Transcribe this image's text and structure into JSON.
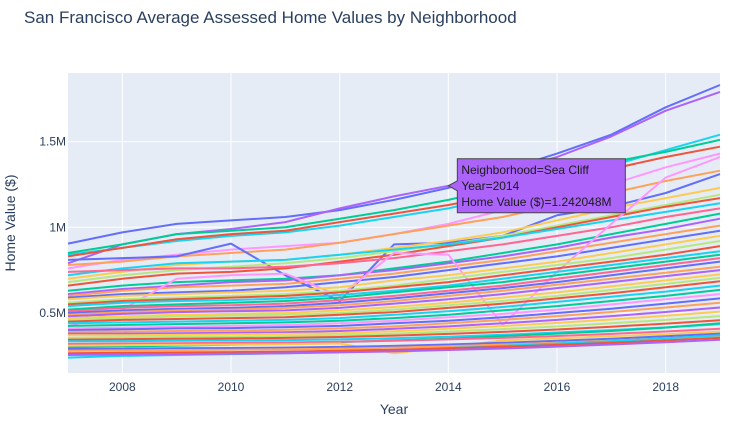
{
  "chart_data": {
    "type": "line",
    "title": "San Francisco Average Assessed Home Values by Neighborhood",
    "xlabel": "Year",
    "ylabel": "Home Value ($)",
    "xlim": [
      2007,
      2019
    ],
    "ylim": [
      150000,
      1900000
    ],
    "x_ticks": [
      2008,
      2010,
      2012,
      2014,
      2016,
      2018
    ],
    "y_ticks": [
      500000,
      1000000,
      1500000
    ],
    "y_tick_labels": [
      "0.5M",
      "1M",
      "1.5M"
    ],
    "grid": true,
    "background": "#e5ecf6",
    "x": [
      2007,
      2008,
      2009,
      2010,
      2011,
      2012,
      2013,
      2014,
      2015,
      2016,
      2017,
      2018,
      2019
    ],
    "series": [
      {
        "color": "#636efa",
        "values": [
          905000,
          970000,
          1020000,
          1040000,
          1060000,
          1100000,
          1160000,
          1230000,
          1330000,
          1430000,
          1540000,
          1700000,
          1830000
        ]
      },
      {
        "color": "#ab63fa",
        "values": [
          790000,
          900000,
          960000,
          990000,
          1030000,
          1110000,
          1180000,
          1242048,
          1320000,
          1410000,
          1530000,
          1680000,
          1790000
        ]
      },
      {
        "color": "#19d3f3",
        "values": [
          840000,
          880000,
          920000,
          950000,
          970000,
          1010000,
          1060000,
          1110000,
          1180000,
          1270000,
          1360000,
          1450000,
          1540000
        ]
      },
      {
        "color": "#00cc96",
        "values": [
          850000,
          900000,
          960000,
          980000,
          1000000,
          1050000,
          1100000,
          1160000,
          1230000,
          1300000,
          1380000,
          1440000,
          1510000
        ]
      },
      {
        "color": "#ef553b",
        "values": [
          830000,
          880000,
          930000,
          960000,
          980000,
          1030000,
          1080000,
          1130000,
          1190000,
          1260000,
          1340000,
          1410000,
          1470000
        ]
      },
      {
        "color": "#ff97ff",
        "values": [
          760000,
          810000,
          840000,
          870000,
          890000,
          910000,
          960000,
          1020000,
          1100000,
          1180000,
          1250000,
          1350000,
          1430000
        ]
      },
      {
        "color": "#ffa15a",
        "values": [
          780000,
          800000,
          830000,
          850000,
          870000,
          910000,
          960000,
          1010000,
          1060000,
          1130000,
          1200000,
          1270000,
          1330000
        ]
      },
      {
        "color": "#636efa",
        "values": [
          810000,
          820000,
          830000,
          905000,
          720000,
          570000,
          900000,
          910000,
          950000,
          1070000,
          1120000,
          1200000,
          1310000
        ]
      },
      {
        "color": "#fecb52",
        "values": [
          700000,
          740000,
          780000,
          800000,
          810000,
          840000,
          880000,
          920000,
          970000,
          1040000,
          1110000,
          1170000,
          1230000
        ]
      },
      {
        "color": "#b6e880",
        "values": [
          680000,
          720000,
          750000,
          770000,
          790000,
          820000,
          860000,
          900000,
          950000,
          1010000,
          1070000,
          1130000,
          1190000
        ]
      },
      {
        "color": "#ef553b",
        "values": [
          660000,
          700000,
          730000,
          740000,
          760000,
          800000,
          840000,
          890000,
          940000,
          1000000,
          1060000,
          1120000,
          1170000
        ]
      },
      {
        "color": "#19d3f3",
        "values": [
          720000,
          760000,
          790000,
          800000,
          810000,
          840000,
          870000,
          900000,
          940000,
          990000,
          1040000,
          1090000,
          1140000
        ]
      },
      {
        "color": "#ff6692",
        "values": [
          740000,
          750000,
          760000,
          760000,
          770000,
          790000,
          820000,
          860000,
          900000,
          950000,
          1000000,
          1060000,
          1110000
        ]
      },
      {
        "color": "#00cc96",
        "values": [
          630000,
          660000,
          680000,
          690000,
          700000,
          720000,
          760000,
          800000,
          850000,
          900000,
          960000,
          1020000,
          1080000
        ]
      },
      {
        "color": "#ab63fa",
        "values": [
          610000,
          640000,
          660000,
          680000,
          690000,
          720000,
          750000,
          790000,
          830000,
          880000,
          940000,
          990000,
          1050000
        ]
      },
      {
        "color": "#ffa15a",
        "values": [
          600000,
          630000,
          650000,
          660000,
          670000,
          700000,
          730000,
          770000,
          810000,
          860000,
          910000,
          960000,
          1010000
        ]
      },
      {
        "color": "#636efa",
        "values": [
          590000,
          610000,
          620000,
          630000,
          650000,
          680000,
          710000,
          750000,
          790000,
          830000,
          880000,
          930000,
          980000
        ]
      },
      {
        "color": "#ff97ff",
        "values": [
          420000,
          520000,
          700000,
          720000,
          730000,
          600000,
          850000,
          840000,
          430000,
          740000,
          1020000,
          1290000,
          1410000
        ]
      },
      {
        "color": "#fecb52",
        "values": [
          580000,
          600000,
          610000,
          620000,
          630000,
          650000,
          690000,
          720000,
          760000,
          800000,
          850000,
          900000,
          950000
        ]
      },
      {
        "color": "#b6e880",
        "values": [
          560000,
          580000,
          590000,
          600000,
          610000,
          630000,
          660000,
          700000,
          740000,
          780000,
          820000,
          870000,
          920000
        ]
      },
      {
        "color": "#ef553b",
        "values": [
          550000,
          570000,
          580000,
          590000,
          600000,
          620000,
          650000,
          680000,
          720000,
          760000,
          800000,
          840000,
          890000
        ]
      },
      {
        "color": "#19d3f3",
        "values": [
          540000,
          560000,
          570000,
          575000,
          585000,
          605000,
          630000,
          660000,
          700000,
          740000,
          780000,
          820000,
          860000
        ]
      },
      {
        "color": "#00cc96",
        "values": [
          520000,
          540000,
          550000,
          560000,
          570000,
          590000,
          620000,
          650000,
          680000,
          720000,
          760000,
          800000,
          840000
        ]
      },
      {
        "color": "#ff6692",
        "values": [
          510000,
          530000,
          540000,
          545000,
          555000,
          575000,
          600000,
          630000,
          660000,
          700000,
          740000,
          780000,
          820000
        ]
      },
      {
        "color": "#636efa",
        "values": [
          500000,
          515000,
          525000,
          530000,
          540000,
          560000,
          585000,
          615000,
          645000,
          680000,
          720000,
          760000,
          800000
        ]
      },
      {
        "color": "#ffa15a",
        "values": [
          490000,
          505000,
          515000,
          520000,
          530000,
          545000,
          570000,
          600000,
          630000,
          665000,
          700000,
          735000,
          770000
        ]
      },
      {
        "color": "#ab63fa",
        "values": [
          480000,
          495000,
          505000,
          510000,
          515000,
          530000,
          555000,
          580000,
          610000,
          645000,
          680000,
          715000,
          750000
        ]
      },
      {
        "color": "#fecb52",
        "values": [
          470000,
          480000,
          490000,
          495000,
          500000,
          515000,
          535000,
          560000,
          590000,
          620000,
          655000,
          690000,
          725000
        ]
      },
      {
        "color": "#b6e880",
        "values": [
          460000,
          470000,
          480000,
          485000,
          490000,
          500000,
          520000,
          545000,
          570000,
          600000,
          635000,
          670000,
          705000
        ]
      },
      {
        "color": "#ef553b",
        "values": [
          450000,
          460000,
          465000,
          470000,
          475000,
          490000,
          505000,
          530000,
          555000,
          585000,
          615000,
          650000,
          685000
        ]
      },
      {
        "color": "#19d3f3",
        "values": [
          440000,
          445000,
          450000,
          455000,
          460000,
          470000,
          490000,
          510000,
          535000,
          565000,
          595000,
          625000,
          660000
        ]
      },
      {
        "color": "#00cc96",
        "values": [
          425000,
          430000,
          435000,
          440000,
          445000,
          455000,
          470000,
          490000,
          515000,
          540000,
          570000,
          600000,
          635000
        ]
      },
      {
        "color": "#ff97ff",
        "values": [
          410000,
          415000,
          420000,
          425000,
          430000,
          440000,
          455000,
          475000,
          495000,
          520000,
          550000,
          580000,
          610000
        ]
      },
      {
        "color": "#636efa",
        "values": [
          400000,
          405000,
          410000,
          412000,
          418000,
          425000,
          440000,
          455000,
          475000,
          500000,
          525000,
          555000,
          585000
        ]
      },
      {
        "color": "#ffa15a",
        "values": [
          390000,
          392000,
          395000,
          398000,
          402000,
          410000,
          422000,
          440000,
          460000,
          482000,
          506000,
          532000,
          560000
        ]
      },
      {
        "color": "#ab63fa",
        "values": [
          380000,
          380000,
          382000,
          385000,
          388000,
          395000,
          408000,
          422000,
          440000,
          460000,
          482000,
          506000,
          532000
        ]
      },
      {
        "color": "#fecb52",
        "values": [
          370000,
          370000,
          372000,
          375000,
          378000,
          382000,
          394000,
          408000,
          424000,
          442000,
          462000,
          484000,
          508000
        ]
      },
      {
        "color": "#b6e880",
        "values": [
          355000,
          358000,
          360000,
          362000,
          365000,
          370000,
          380000,
          392000,
          406000,
          422000,
          440000,
          460000,
          482000
        ]
      },
      {
        "color": "#ef553b",
        "values": [
          345000,
          347000,
          350000,
          352000,
          355000,
          360000,
          368000,
          378000,
          390000,
          404000,
          420000,
          438000,
          458000
        ]
      },
      {
        "color": "#19d3f3",
        "values": [
          335000,
          336000,
          338000,
          340000,
          342000,
          346000,
          353000,
          362000,
          373000,
          386000,
          400000,
          416000,
          434000
        ]
      },
      {
        "color": "#00cc96",
        "values": [
          300000,
          305000,
          310000,
          315000,
          320000,
          330000,
          340000,
          350000,
          365000,
          380000,
          395000,
          415000,
          440000
        ]
      },
      {
        "color": "#ff6692",
        "values": [
          320000,
          322000,
          324000,
          326000,
          328000,
          332000,
          338000,
          346000,
          355000,
          366000,
          378000,
          392000,
          408000
        ]
      },
      {
        "color": "#fecb52",
        "values": [
          310000,
          312000,
          314000,
          316000,
          318000,
          322000,
          265000,
          300000,
          340000,
          352000,
          364000,
          376000,
          392000
        ]
      },
      {
        "color": "#636efa",
        "values": [
          290000,
          292000,
          294000,
          296000,
          298000,
          302000,
          308000,
          316000,
          326000,
          338000,
          350000,
          364000,
          380000
        ]
      },
      {
        "color": "#ffa15a",
        "values": [
          280000,
          282000,
          284000,
          286000,
          288000,
          292000,
          298000,
          306000,
          316000,
          327000,
          339000,
          352000,
          366000
        ]
      },
      {
        "color": "#19d3f3",
        "values": [
          240000,
          250000,
          255000,
          260000,
          265000,
          272000,
          282000,
          295000,
          308000,
          322000,
          336000,
          352000,
          370000
        ]
      },
      {
        "color": "#ef553b",
        "values": [
          265000,
          268000,
          270000,
          272000,
          275000,
          280000,
          286000,
          294000,
          303000,
          314000,
          326000,
          340000,
          355000
        ]
      },
      {
        "color": "#ab63fa",
        "values": [
          255000,
          258000,
          260000,
          262000,
          265000,
          270000,
          276000,
          284000,
          293000,
          304000,
          316000,
          329000,
          344000
        ]
      }
    ],
    "hover": {
      "series_index": 1,
      "x": 2014,
      "lines": [
        "Neighborhood=Sea Cliff",
        "Year=2014",
        "Home Value ($)=1.242048M"
      ],
      "color": "#ab63fa"
    }
  }
}
